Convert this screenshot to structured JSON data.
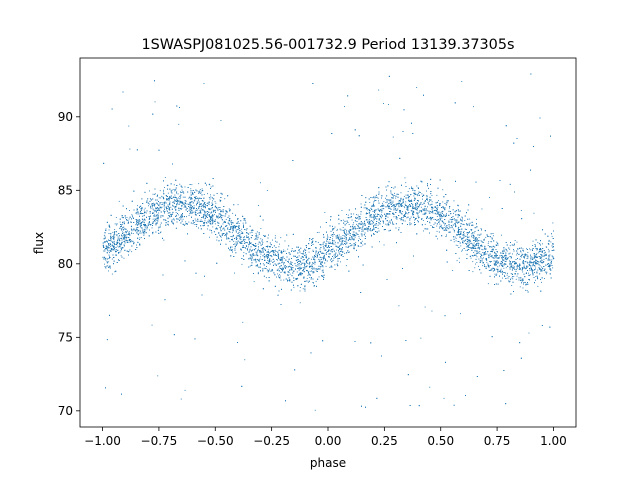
{
  "chart_data": {
    "type": "scatter",
    "title": "1SWASPJ081025.56-001732.9 Period 13139.37305s",
    "xlabel": "phase",
    "ylabel": "flux",
    "xlim": [
      -1.1,
      1.1
    ],
    "ylim": [
      68.9,
      94.0
    ],
    "xticks": [
      -1.0,
      -0.75,
      -0.5,
      -0.25,
      0.0,
      0.25,
      0.5,
      0.75,
      1.0
    ],
    "xtick_labels": [
      "−1.00",
      "−0.75",
      "−0.50",
      "−0.25",
      "0.00",
      "0.25",
      "0.50",
      "0.75",
      "1.00"
    ],
    "yticks": [
      70,
      75,
      80,
      85,
      90
    ],
    "ytick_labels": [
      "70",
      "75",
      "80",
      "85",
      "90"
    ],
    "grid": false,
    "marker_color": "#1f77b4",
    "series": [
      {
        "description_source": "phase-folded light curve, sinusoidal envelope with two cycles over phase -1 to 1",
        "phase_range": [
          -1.0,
          1.0
        ],
        "mean_flux": 82.0,
        "amplitude": 2.1,
        "minimum_phase": [
          -1.0,
          -0.1,
          0.0,
          0.9,
          1.0
        ],
        "maximum_phase": [
          -0.65,
          0.35
        ],
        "maximum_flux": 84.1,
        "minimum_flux": 79.9,
        "point_count_estimate": 14000,
        "scatter_band_halfwidth": 1.5,
        "outlier_range": [
          70.0,
          93.0
        ]
      }
    ]
  }
}
